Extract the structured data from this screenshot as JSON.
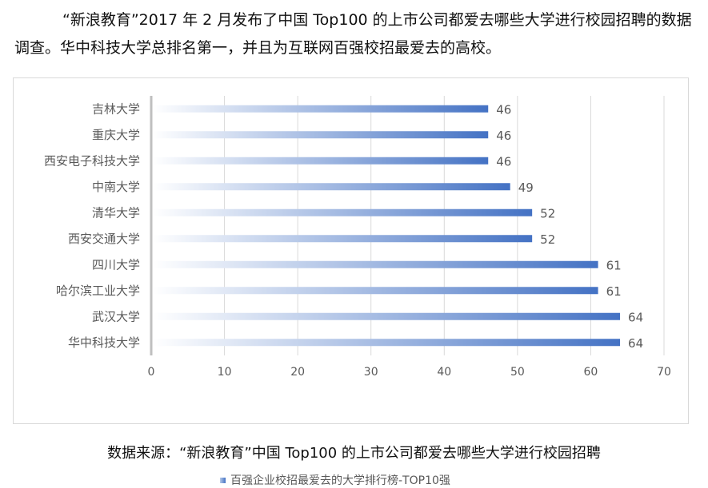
{
  "intro_text": "“新浪教育”2017 年 2 月发布了中国 Top100 的上市公司都爱去哪些大学进行校园招聘的数据调查。华中科技大学总排名第一，并且为互联网百强校招最爱去的高校。",
  "source_text": "数据来源：“新浪教育”中国 Top100 的上市公司都爱去哪些大学进行校园招聘",
  "colors": {
    "bar_start": "#ffffff",
    "bar_end": "#4472c4",
    "grid": "#d9d9d9",
    "axis": "#bfbfbf",
    "label": "#595959"
  },
  "chart_data": {
    "type": "bar",
    "orientation": "horizontal",
    "categories": [
      "吉林大学",
      "重庆大学",
      "西安电子科技大学",
      "中南大学",
      "清华大学",
      "西安交通大学",
      "四川大学",
      "哈尔滨工业大学",
      "武汉大学",
      "华中科技大学"
    ],
    "series": [
      {
        "name": "百强企业校招最爱去的大学排行榜-TOP10强",
        "values": [
          46,
          46,
          46,
          49,
          52,
          52,
          61,
          61,
          64,
          64
        ]
      }
    ],
    "xlim": [
      0,
      70
    ],
    "xticks": [
      0,
      10,
      20,
      30,
      40,
      50,
      60,
      70
    ],
    "grid": true,
    "data_labels": true,
    "legend_position": "bottom"
  }
}
